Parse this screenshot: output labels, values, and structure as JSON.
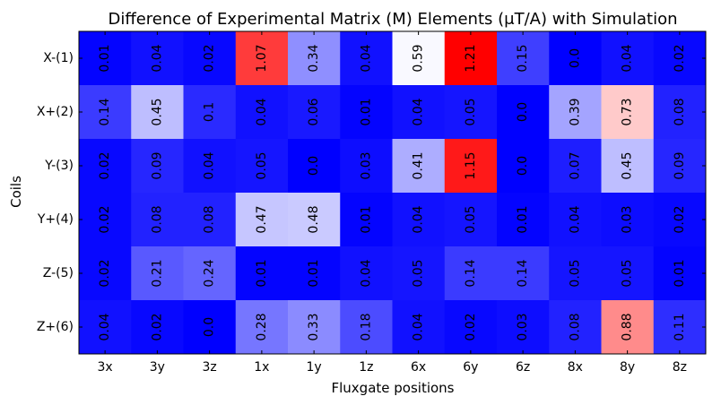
{
  "chart_data": {
    "type": "heatmap",
    "title": "Difference of Experimental Matrix (M) Elements  (μT/A) with Simulation",
    "xlabel": "Fluxgate positions",
    "ylabel": "Coils",
    "x_categories": [
      "3x",
      "3y",
      "3z",
      "1x",
      "1y",
      "1z",
      "6x",
      "6y",
      "6z",
      "8x",
      "8y",
      "8z"
    ],
    "y_categories": [
      "X-(1)",
      "X+(2)",
      "Y-(3)",
      "Y+(4)",
      "Z-(5)",
      "Z+(6)"
    ],
    "values": [
      [
        0.01,
        0.04,
        0.02,
        1.07,
        0.34,
        0.04,
        0.59,
        1.21,
        0.15,
        0.0,
        0.04,
        0.02
      ],
      [
        0.14,
        0.45,
        0.1,
        0.04,
        0.06,
        0.01,
        0.04,
        0.05,
        0.0,
        0.39,
        0.73,
        0.08
      ],
      [
        0.02,
        0.09,
        0.04,
        0.05,
        0.0,
        0.03,
        0.41,
        1.15,
        0.0,
        0.07,
        0.45,
        0.09
      ],
      [
        0.02,
        0.08,
        0.08,
        0.47,
        0.48,
        0.01,
        0.04,
        0.05,
        0.01,
        0.04,
        0.03,
        0.02
      ],
      [
        0.02,
        0.21,
        0.24,
        0.01,
        0.01,
        0.04,
        0.05,
        0.14,
        0.14,
        0.05,
        0.05,
        0.01
      ],
      [
        0.04,
        0.02,
        0.0,
        0.28,
        0.33,
        0.18,
        0.04,
        0.02,
        0.03,
        0.08,
        0.88,
        0.11
      ]
    ],
    "value_labels": [
      [
        "0.01",
        "0.04",
        "0.02",
        "1.07",
        "0.34",
        "0.04",
        "0.59",
        "1.21",
        "0.15",
        "0.0",
        "0.04",
        "0.02"
      ],
      [
        "0.14",
        "0.45",
        "0.1",
        "0.04",
        "0.06",
        "0.01",
        "0.04",
        "0.05",
        "0.0",
        "0.39",
        "0.73",
        "0.08"
      ],
      [
        "0.02",
        "0.09",
        "0.04",
        "0.05",
        "0.0",
        "0.03",
        "0.41",
        "1.15",
        "0.0",
        "0.07",
        "0.45",
        "0.09"
      ],
      [
        "0.02",
        "0.08",
        "0.08",
        "0.47",
        "0.48",
        "0.01",
        "0.04",
        "0.05",
        "0.01",
        "0.04",
        "0.03",
        "0.02"
      ],
      [
        "0.02",
        "0.21",
        "0.24",
        "0.01",
        "0.01",
        "0.04",
        "0.05",
        "0.14",
        "0.14",
        "0.05",
        "0.05",
        "0.01"
      ],
      [
        "0.04",
        "0.02",
        "0.0",
        "0.28",
        "0.33",
        "0.18",
        "0.04",
        "0.02",
        "0.03",
        "0.08",
        "0.88",
        "0.11"
      ]
    ],
    "colormap": "bwr",
    "color_range": [
      0.0,
      1.21
    ],
    "colors": {
      "low": "#0000ff",
      "mid": "#ffffff",
      "high": "#ff0000"
    },
    "grid": false,
    "legend": "none"
  }
}
